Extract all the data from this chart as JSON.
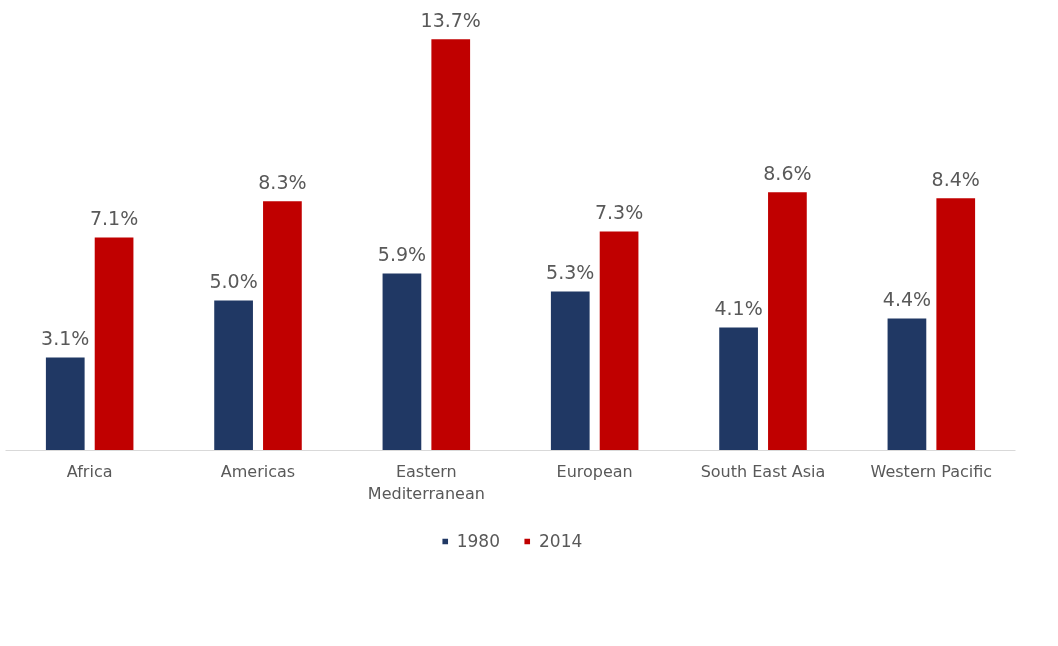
{
  "chart_data": {
    "type": "bar",
    "categories": [
      "Africa",
      "Americas",
      "Eastern Mediterranean",
      "European",
      "South East Asia",
      "Western Pacific"
    ],
    "series": [
      {
        "name": "1980",
        "color": "#203864",
        "values": [
          3.1,
          5.0,
          5.9,
          5.3,
          4.1,
          4.4
        ],
        "value_labels": [
          "3.1%",
          "5.0%",
          "5.9%",
          "5.3%",
          "4.1%",
          "4.4%"
        ]
      },
      {
        "name": "2014",
        "color": "#c00000",
        "values": [
          7.1,
          8.3,
          13.7,
          7.3,
          8.6,
          8.4
        ],
        "value_labels": [
          "7.1%",
          "8.3%",
          "13.7%",
          "7.3%",
          "8.6%",
          "8.4%"
        ]
      }
    ],
    "legend": "bottom",
    "grid": false,
    "tick_labels": "x"
  }
}
